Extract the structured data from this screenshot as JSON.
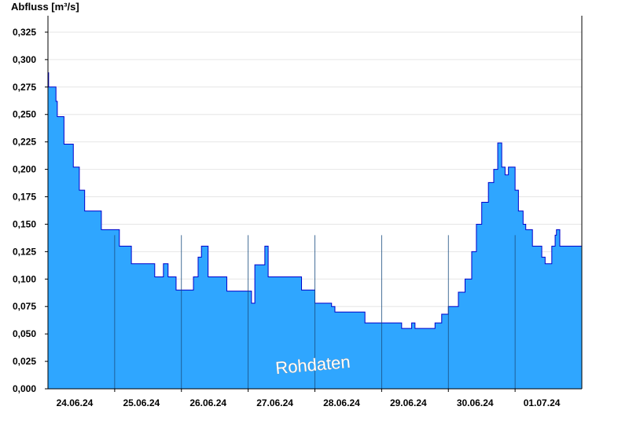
{
  "chart_data": {
    "type": "area",
    "title": "",
    "ylabel": "Abfluss [m³/s]",
    "xlabel": "",
    "watermark": "Rohdaten",
    "ylim": [
      0,
      0.34
    ],
    "grid": true,
    "colors": {
      "fill": "#2fa6ff",
      "line": "#0000cc",
      "grid": "#e6e6e6",
      "day_line": "#1a4d80"
    },
    "y_ticks": [
      {
        "v": 0.0,
        "label": "0,000"
      },
      {
        "v": 0.025,
        "label": "0,025"
      },
      {
        "v": 0.05,
        "label": "0,050"
      },
      {
        "v": 0.075,
        "label": "0,075"
      },
      {
        "v": 0.1,
        "label": "0,100"
      },
      {
        "v": 0.125,
        "label": "0,125"
      },
      {
        "v": 0.15,
        "label": "0,150"
      },
      {
        "v": 0.175,
        "label": "0,175"
      },
      {
        "v": 0.2,
        "label": "0,200"
      },
      {
        "v": 0.225,
        "label": "0,225"
      },
      {
        "v": 0.25,
        "label": "0,250"
      },
      {
        "v": 0.275,
        "label": "0,275"
      },
      {
        "v": 0.3,
        "label": "0,300"
      },
      {
        "v": 0.325,
        "label": "0,325"
      }
    ],
    "x_range_days": [
      23.6,
      31.6
    ],
    "day_boundaries": [
      24.6,
      25.6,
      26.6,
      27.6,
      28.6,
      29.6,
      30.6
    ],
    "x_ticks": [
      {
        "v": 24.0,
        "label": "24.06.24"
      },
      {
        "v": 25.0,
        "label": "25.06.24"
      },
      {
        "v": 26.0,
        "label": "26.06.24"
      },
      {
        "v": 27.0,
        "label": "27.06.24"
      },
      {
        "v": 28.0,
        "label": "28.06.24"
      },
      {
        "v": 29.0,
        "label": "29.06.24"
      },
      {
        "v": 30.0,
        "label": "30.06.24"
      },
      {
        "v": 31.0,
        "label": "01.07.24"
      }
    ],
    "series": [
      {
        "x": [
          23.6,
          23.61,
          23.62,
          23.72,
          23.74,
          23.76,
          23.84,
          23.88,
          23.98,
          24.0,
          24.07,
          24.1,
          24.15,
          24.3,
          24.4,
          24.5,
          24.55,
          24.6,
          24.67,
          24.8,
          24.85,
          25.05,
          25.2,
          25.28,
          25.33,
          25.4,
          25.44,
          25.48,
          25.52,
          25.62,
          25.66,
          25.72,
          25.78,
          25.85,
          25.9,
          25.95,
          26.0,
          26.07,
          26.12,
          26.2,
          26.28,
          26.4,
          26.5,
          26.65,
          26.7,
          26.85,
          26.9,
          27.0,
          27.05,
          27.1,
          27.2,
          27.25,
          27.32,
          27.4,
          27.5,
          27.6,
          27.7,
          27.8,
          27.85,
          27.9,
          28.0,
          28.1,
          28.2,
          28.25,
          28.35,
          28.45,
          28.5,
          28.6,
          28.7,
          28.8,
          28.9,
          29.0,
          29.05,
          29.1,
          29.2,
          29.3,
          29.4,
          29.5,
          29.6,
          29.75,
          29.85,
          29.95,
          30.02,
          30.1,
          30.2,
          30.28,
          30.34,
          30.4,
          30.45,
          30.5,
          30.52,
          30.55,
          30.6,
          30.62,
          30.65,
          30.68,
          30.72,
          30.76,
          30.8,
          30.86,
          30.92,
          31.0,
          31.05,
          31.1,
          31.15,
          31.2,
          31.22,
          31.27,
          31.3,
          31.35,
          31.4,
          31.45,
          31.5,
          31.6
        ],
        "y": [
          0.288,
          0.275,
          0.275,
          0.262,
          0.248,
          0.248,
          0.223,
          0.223,
          0.202,
          0.202,
          0.181,
          0.181,
          0.162,
          0.162,
          0.145,
          0.145,
          0.145,
          0.145,
          0.13,
          0.13,
          0.114,
          0.114,
          0.102,
          0.102,
          0.114,
          0.102,
          0.102,
          0.102,
          0.09,
          0.09,
          0.09,
          0.09,
          0.102,
          0.12,
          0.13,
          0.13,
          0.102,
          0.102,
          0.102,
          0.102,
          0.089,
          0.089,
          0.089,
          0.078,
          0.113,
          0.13,
          0.102,
          0.102,
          0.102,
          0.102,
          0.102,
          0.102,
          0.102,
          0.09,
          0.09,
          0.078,
          0.078,
          0.078,
          0.075,
          0.07,
          0.07,
          0.07,
          0.07,
          0.07,
          0.06,
          0.06,
          0.06,
          0.06,
          0.06,
          0.06,
          0.055,
          0.055,
          0.06,
          0.055,
          0.055,
          0.055,
          0.06,
          0.068,
          0.075,
          0.088,
          0.1,
          0.125,
          0.15,
          0.17,
          0.188,
          0.2,
          0.224,
          0.202,
          0.195,
          0.202,
          0.202,
          0.202,
          0.181,
          0.181,
          0.162,
          0.162,
          0.15,
          0.145,
          0.145,
          0.13,
          0.13,
          0.12,
          0.114,
          0.114,
          0.13,
          0.14,
          0.145,
          0.13,
          0.13,
          0.13,
          0.13,
          0.13,
          0.13,
          0.13
        ]
      }
    ]
  }
}
